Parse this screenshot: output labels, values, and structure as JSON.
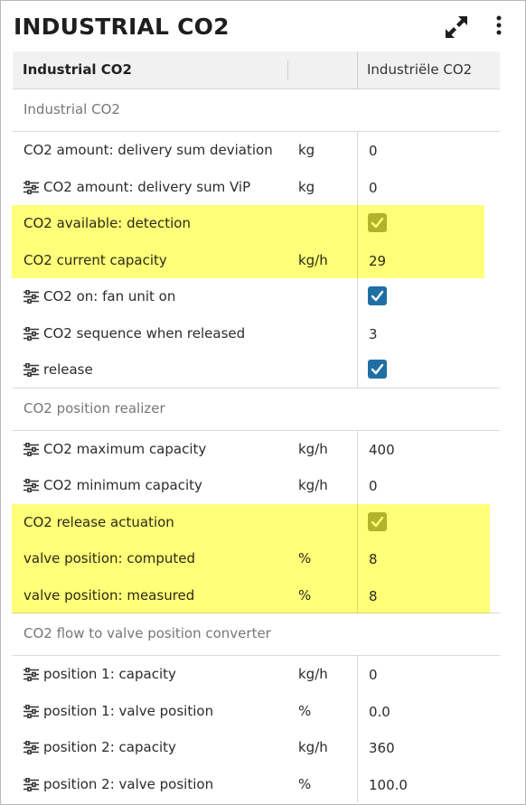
{
  "header": {
    "title": "INDUSTRIAL CO2"
  },
  "columns": {
    "name": "Industrial CO2",
    "value": "Industriële CO2"
  },
  "icons": {
    "expand": "expand-arrows-icon",
    "more": "more-vertical-icon",
    "settings": "sliders-icon",
    "check": "checkmark-icon"
  },
  "colors": {
    "highlight": "#ffff66",
    "checkbox_on": "#1f6fa5",
    "checkbox_readonly": "#b3b35a"
  },
  "sections": [
    {
      "label": "Industrial CO2",
      "rows": [
        {
          "name": "CO2 amount: delivery sum deviation",
          "unit": "kg",
          "value": "0",
          "icon": false
        },
        {
          "name": "CO2 amount: delivery sum ViP",
          "unit": "kg",
          "value": "0",
          "icon": true
        },
        {
          "name": "CO2 available: detection",
          "unit": "",
          "checked": true,
          "readonly": true,
          "icon": false
        },
        {
          "name": "CO2 current capacity",
          "unit": "kg/h",
          "value": "29",
          "icon": false
        },
        {
          "name": "CO2 on: fan unit on",
          "unit": "",
          "checked": true,
          "readonly": false,
          "icon": true
        },
        {
          "name": "CO2 sequence when released",
          "unit": "",
          "value": "3",
          "icon": true
        },
        {
          "name": "release",
          "unit": "",
          "checked": true,
          "readonly": false,
          "icon": true
        }
      ]
    },
    {
      "label": "CO2 position realizer",
      "rows": [
        {
          "name": "CO2 maximum capacity",
          "unit": "kg/h",
          "value": "400",
          "icon": true
        },
        {
          "name": "CO2 minimum capacity",
          "unit": "kg/h",
          "value": "0",
          "icon": true
        },
        {
          "name": "CO2 release actuation",
          "unit": "",
          "checked": true,
          "readonly": true,
          "icon": false
        },
        {
          "name": "valve position: computed",
          "unit": "%",
          "value": "8",
          "icon": false
        },
        {
          "name": "valve position: measured",
          "unit": "%",
          "value": "8",
          "icon": false
        }
      ]
    },
    {
      "label": "CO2 flow to valve position converter",
      "rows": [
        {
          "name": "position 1: capacity",
          "unit": "kg/h",
          "value": "0",
          "icon": true
        },
        {
          "name": "position 1: valve position",
          "unit": "%",
          "value": "0.0",
          "icon": true
        },
        {
          "name": "position 2: capacity",
          "unit": "kg/h",
          "value": "360",
          "icon": true
        },
        {
          "name": "position 2: valve position",
          "unit": "%",
          "value": "100.0",
          "icon": true
        }
      ]
    }
  ]
}
